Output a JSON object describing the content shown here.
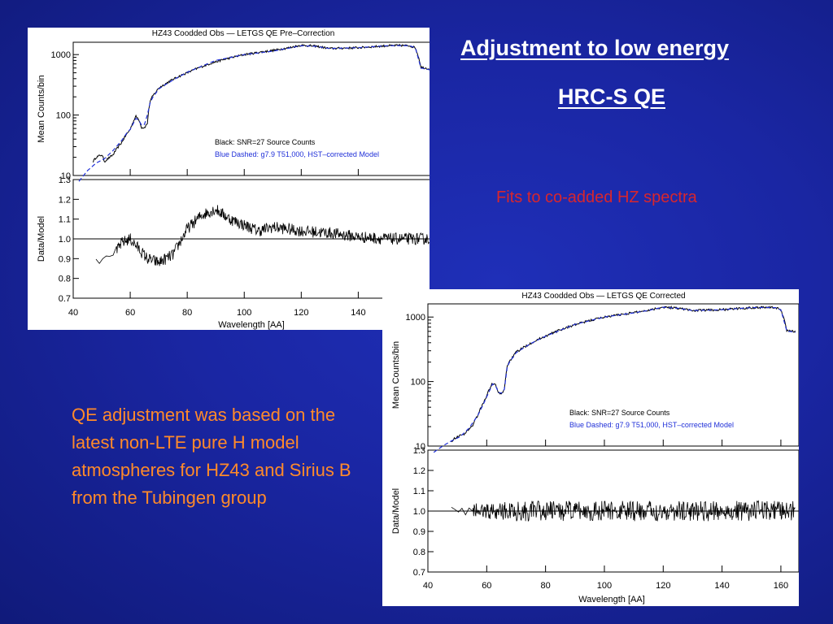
{
  "slide": {
    "title_line1": "Adjustment  to low energy",
    "title_line2": "HRC-S QE",
    "subtitle": "Fits to co-added HZ spectra",
    "body": "QE adjustment was based on the latest non-LTE pure H model atmospheres for HZ43 and Sirius B from the Tubingen group",
    "colors": {
      "background": "#1a26a3",
      "title": "#ffffff",
      "subtitle": "#d8262d",
      "body": "#ff8a2a",
      "model_line": "#1f2fd8",
      "data_line": "#000000"
    }
  },
  "chart_data": [
    {
      "id": "pre-correction",
      "type": "line",
      "title": "HZ43 Coodded Obs  —  LETGS QE Pre–Correction",
      "xlabel": "Wavelength [AA]",
      "xlim": [
        40,
        165
      ],
      "x_ticks": [
        "40",
        "60",
        "80",
        "100",
        "120",
        "140"
      ],
      "upper": {
        "ylabel": "Mean Counts/bin",
        "scale": "log",
        "ylim": [
          10,
          1600
        ],
        "y_ticks": [
          "10",
          "100",
          "1000"
        ],
        "legend": [
          "Black: SNR=27 Source Counts",
          "Blue Dashed: g7.9 T51,000, HST–corrected Model"
        ],
        "series": [
          {
            "name": "Black: SNR=27 Source Counts",
            "style": "solid",
            "x": [
              47,
              48,
              50,
              51,
              54,
              57,
              59,
              60,
              62,
              63,
              64,
              65,
              66,
              67,
              68,
              69,
              70,
              72,
              75,
              80,
              90,
              100,
              110,
              115,
              120,
              125,
              130,
              140,
              150,
              155,
              158,
              160,
              162,
              165
            ],
            "y": [
              17,
              20,
              22,
              17,
              22,
              35,
              50,
              58,
              95,
              85,
              62,
              62,
              72,
              170,
              210,
              240,
              280,
              320,
              390,
              500,
              760,
              1000,
              1170,
              1280,
              1430,
              1380,
              1260,
              1300,
              1400,
              1420,
              1400,
              1300,
              620,
              580
            ]
          },
          {
            "name": "Blue Dashed: g7.9 T51,000, HST–corrected Model",
            "style": "dashed",
            "x": [
              42,
              45,
              48,
              51,
              54,
              57,
              59,
              60,
              62,
              63,
              64,
              65,
              66,
              67,
              68,
              69,
              70,
              72,
              75,
              80,
              90,
              100,
              110,
              115,
              120,
              125,
              130,
              140,
              150,
              155,
              158,
              160,
              162,
              165
            ],
            "y": [
              8,
              12,
              16,
              19,
              26,
              38,
              52,
              58,
              88,
              82,
              68,
              70,
              100,
              160,
              200,
              230,
              270,
              310,
              380,
              510,
              800,
              1000,
              1140,
              1260,
              1400,
              1370,
              1260,
              1300,
              1400,
              1410,
              1400,
              1300,
              600,
              560
            ]
          }
        ]
      },
      "lower": {
        "ylabel": "Data/Model",
        "ylim": [
          0.7,
          1.3
        ],
        "y_ticks": [
          "0.7",
          "0.8",
          "0.9",
          "1.0",
          "1.1",
          "1.2",
          "1.3"
        ],
        "reference": 1.0,
        "ratio": {
          "x": [
            48,
            50,
            52,
            55,
            57,
            60,
            63,
            66,
            70,
            75,
            80,
            85,
            90,
            95,
            100,
            105,
            110,
            120,
            130,
            140,
            150,
            160,
            165
          ],
          "y": [
            0.9,
            0.88,
            0.92,
            0.93,
            0.98,
            1.0,
            0.95,
            0.9,
            0.88,
            0.92,
            1.05,
            1.12,
            1.15,
            1.1,
            1.07,
            1.04,
            1.06,
            1.04,
            1.03,
            1.01,
            1.0,
            1.0,
            1.0
          ],
          "spread": 0.03
        }
      }
    },
    {
      "id": "corrected",
      "type": "line",
      "title": "HZ43 Coodded Obs  —  LETGS QE Corrected",
      "xlabel": "Wavelength [AA]",
      "xlim": [
        40,
        165
      ],
      "x_ticks": [
        "40",
        "60",
        "80",
        "100",
        "120",
        "140",
        "160"
      ],
      "upper": {
        "ylabel": "Mean Counts/bin",
        "scale": "log",
        "ylim": [
          10,
          1600
        ],
        "y_ticks": [
          "10",
          "100",
          "1000"
        ],
        "legend": [
          "Black: SNR=27 Source Counts",
          "Blue Dashed: g7.9 T51,000, HST–corrected Model"
        ],
        "series": [
          {
            "name": "Black: SNR=27 Source Counts",
            "style": "solid",
            "x": [
              48,
              50,
              52,
              55,
              57,
              59,
              60,
              62,
              63,
              64,
              65,
              66,
              67,
              68,
              69,
              70,
              72,
              75,
              80,
              90,
              100,
              110,
              115,
              120,
              125,
              130,
              140,
              150,
              155,
              158,
              160,
              162,
              165
            ],
            "y": [
              12,
              14,
              15,
              20,
              30,
              48,
              60,
              95,
              88,
              66,
              64,
              74,
              175,
              215,
              245,
              285,
              325,
              395,
              505,
              760,
              1000,
              1170,
              1280,
              1430,
              1380,
              1260,
              1300,
              1400,
              1420,
              1400,
              1300,
              620,
              590
            ]
          },
          {
            "name": "Blue Dashed: g7.9 T51,000, HST–corrected Model",
            "style": "dashed",
            "x": [
              42,
              45,
              48,
              51,
              54,
              57,
              59,
              60,
              62,
              63,
              64,
              65,
              66,
              67,
              68,
              69,
              70,
              72,
              75,
              80,
              90,
              100,
              110,
              115,
              120,
              125,
              130,
              140,
              150,
              155,
              158,
              160,
              162,
              165
            ],
            "y": [
              8,
              10,
              12,
              14,
              19,
              30,
              46,
              58,
              92,
              86,
              68,
              66,
              76,
              170,
              210,
              240,
              280,
              320,
              390,
              505,
              770,
              1000,
              1160,
              1270,
              1420,
              1370,
              1260,
              1300,
              1400,
              1410,
              1400,
              1300,
              610,
              580
            ]
          }
        ]
      },
      "lower": {
        "ylabel": "Data/Model",
        "ylim": [
          0.7,
          1.3
        ],
        "y_ticks": [
          "0.7",
          "0.8",
          "0.9",
          "1.0",
          "1.1",
          "1.2",
          "1.3"
        ],
        "reference": 1.0,
        "ratio": {
          "x": [
            48,
            165
          ],
          "y": [
            1.0,
            1.0
          ],
          "spread": 0.05
        }
      }
    }
  ]
}
